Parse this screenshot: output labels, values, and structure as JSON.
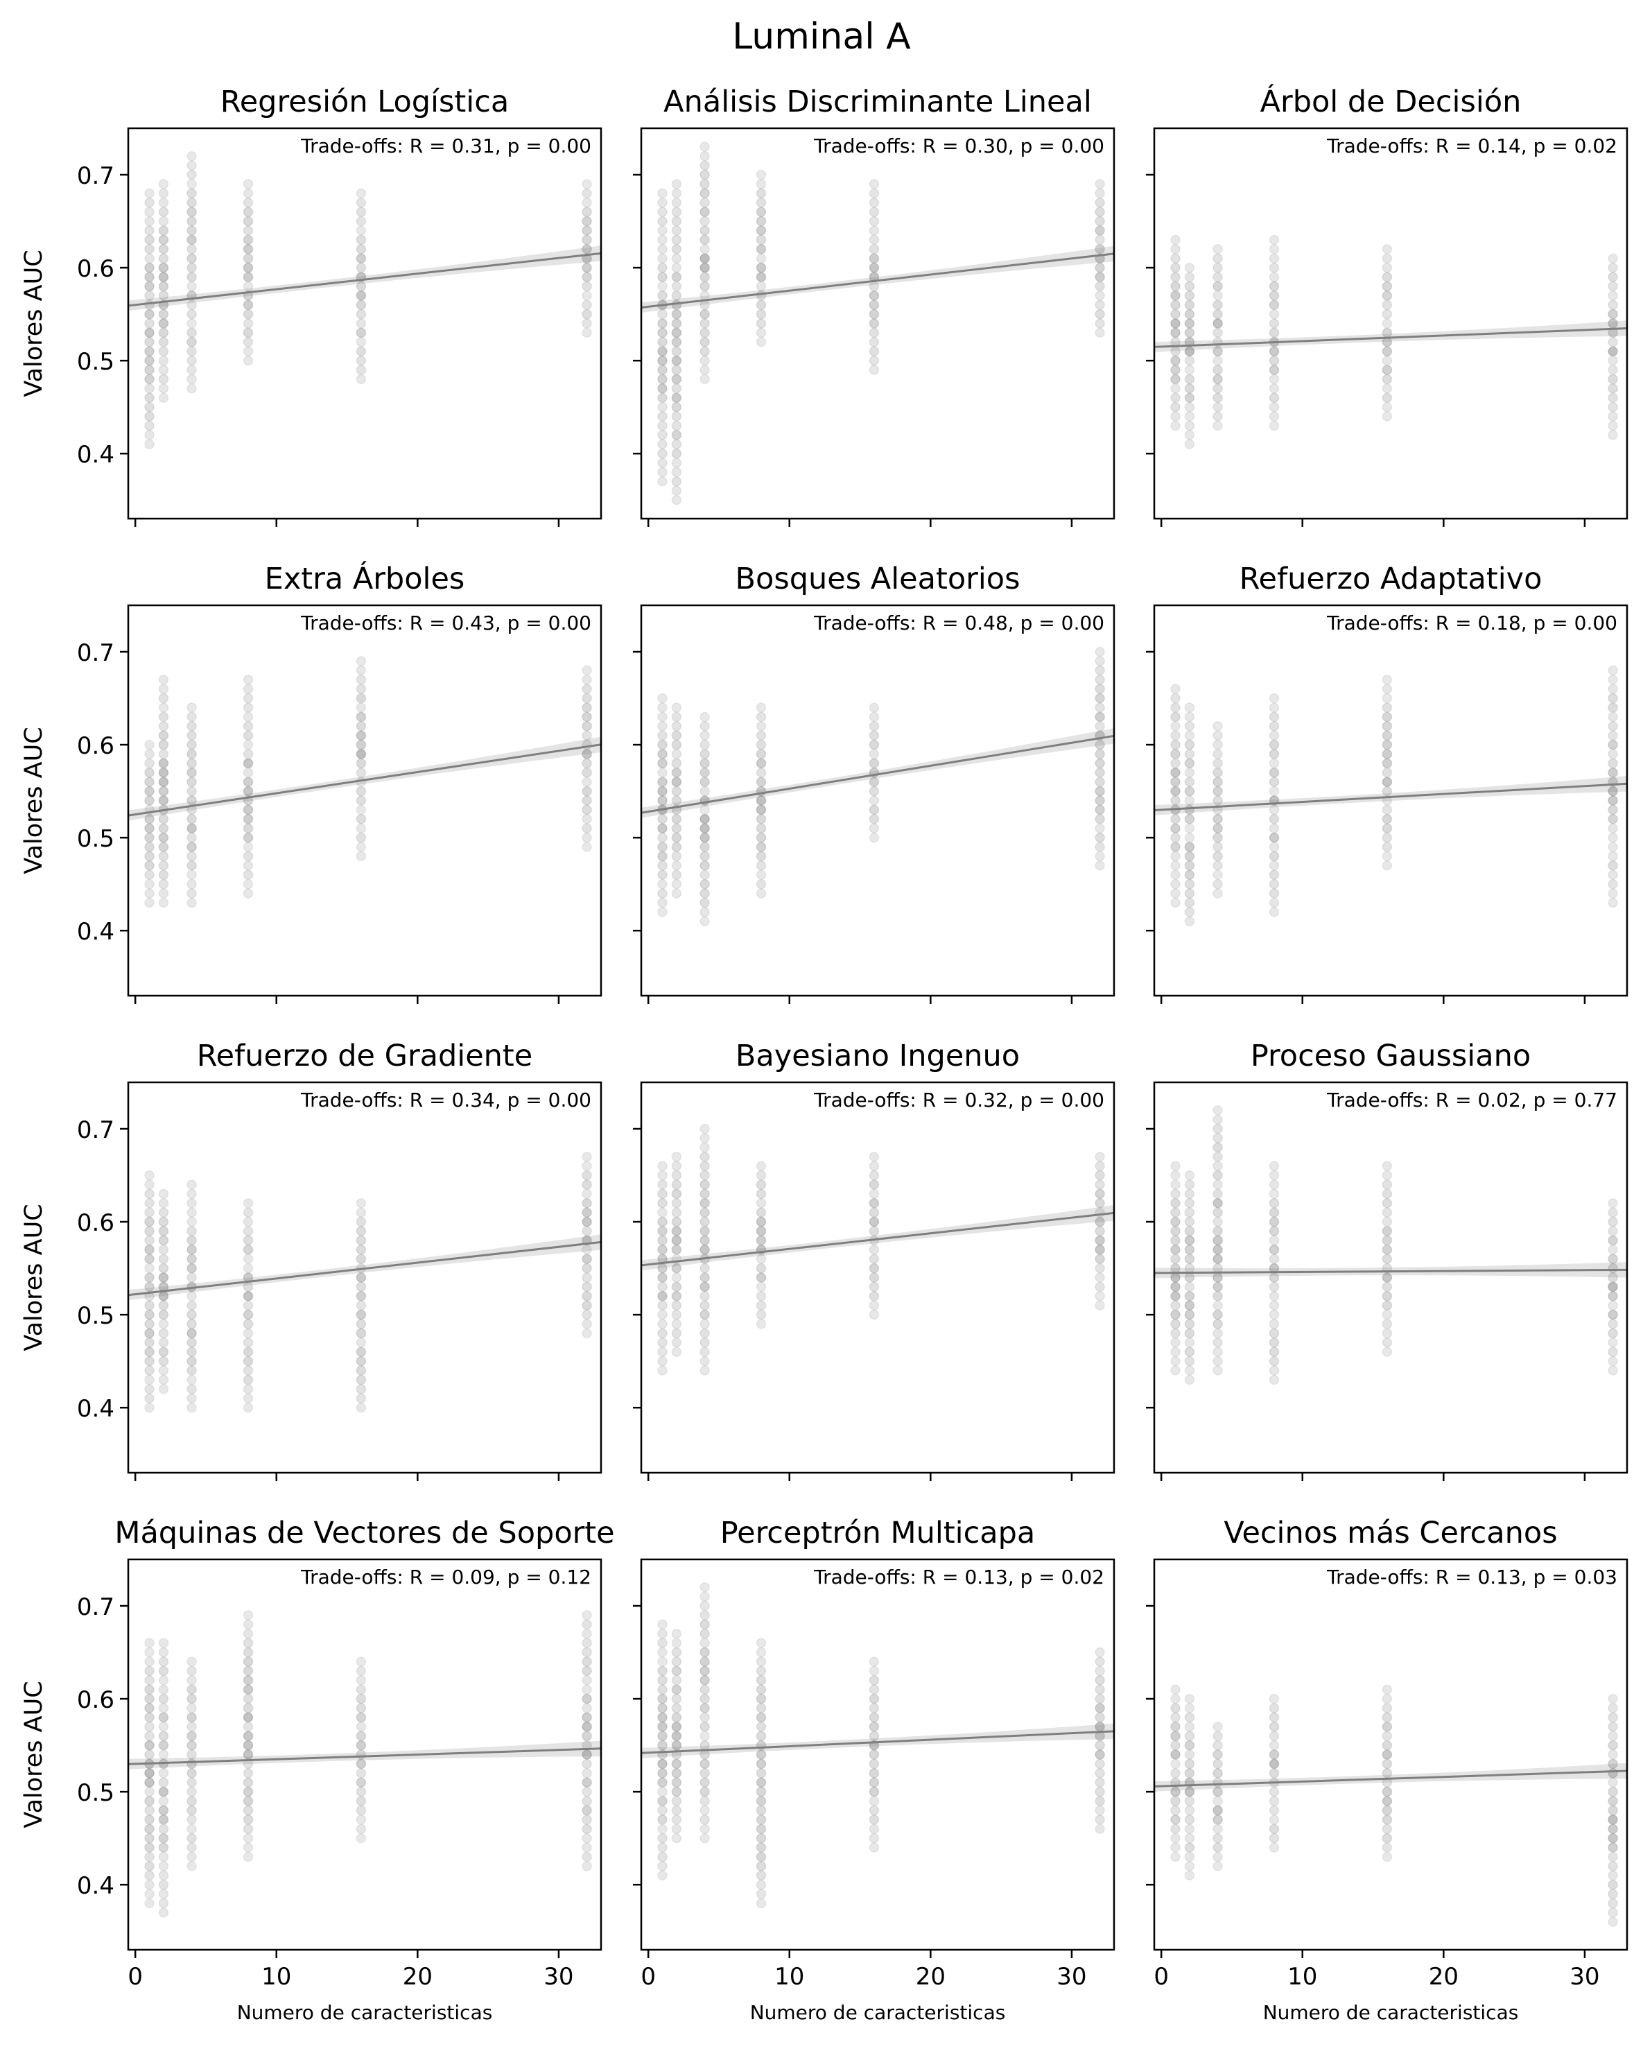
{
  "figure_title": "Luminal A",
  "x_tick_labels": [
    "0",
    "10",
    "20",
    "30"
  ],
  "y_tick_labels": [
    "0.4",
    "0.5",
    "0.6",
    "0.7"
  ],
  "colors": {
    "points": "#808080",
    "regression_line": "#7f7f7f",
    "confidence_band": "#d9d9d9",
    "axes": "#000000"
  },
  "chart_data": [
    {
      "type": "scatter",
      "title": "Regresión Logística",
      "annotation": "Trade-offs: R = 0.31, p = 0.00",
      "ylabel": "Valores AUC",
      "xlabel": "",
      "xlim": [
        -0.5,
        33
      ],
      "ylim": [
        0.33,
        0.75
      ],
      "x_values": [
        1,
        2,
        4,
        8,
        16,
        32
      ],
      "y_min": [
        0.41,
        0.46,
        0.47,
        0.5,
        0.48,
        0.53
      ],
      "y_max": [
        0.68,
        0.69,
        0.72,
        0.69,
        0.68,
        0.69
      ],
      "regression": {
        "intercept": 0.56,
        "slope": 0.00168
      }
    },
    {
      "type": "scatter",
      "title": "Análisis Discriminante Lineal",
      "annotation": "Trade-offs: R = 0.30, p = 0.00",
      "ylabel": "",
      "xlabel": "",
      "xlim": [
        -0.5,
        33
      ],
      "ylim": [
        0.33,
        0.75
      ],
      "x_values": [
        1,
        2,
        4,
        8,
        16,
        32
      ],
      "y_min": [
        0.37,
        0.35,
        0.48,
        0.52,
        0.49,
        0.53
      ],
      "y_max": [
        0.68,
        0.69,
        0.73,
        0.7,
        0.69,
        0.69
      ],
      "regression": {
        "intercept": 0.558,
        "slope": 0.00173
      }
    },
    {
      "type": "scatter",
      "title": "Árbol de Decisión",
      "annotation": "Trade-offs: R = 0.14, p = 0.02",
      "ylabel": "",
      "xlabel": "",
      "xlim": [
        -0.5,
        33
      ],
      "ylim": [
        0.33,
        0.75
      ],
      "x_values": [
        1,
        2,
        4,
        8,
        16,
        32
      ],
      "y_min": [
        0.43,
        0.41,
        0.43,
        0.43,
        0.44,
        0.42
      ],
      "y_max": [
        0.63,
        0.6,
        0.62,
        0.63,
        0.62,
        0.61
      ],
      "regression": {
        "intercept": 0.515,
        "slope": 0.0006
      }
    },
    {
      "type": "scatter",
      "title": "Extra Árboles",
      "annotation": "Trade-offs: R = 0.43, p = 0.00",
      "ylabel": "Valores AUC",
      "xlabel": "",
      "xlim": [
        -0.5,
        33
      ],
      "ylim": [
        0.33,
        0.75
      ],
      "x_values": [
        1,
        2,
        4,
        8,
        16,
        32
      ],
      "y_min": [
        0.43,
        0.43,
        0.43,
        0.44,
        0.48,
        0.49
      ],
      "y_max": [
        0.6,
        0.67,
        0.64,
        0.67,
        0.69,
        0.68
      ],
      "regression": {
        "intercept": 0.525,
        "slope": 0.00228
      }
    },
    {
      "type": "scatter",
      "title": "Bosques Aleatorios",
      "annotation": "Trade-offs: R = 0.48, p = 0.00",
      "ylabel": "",
      "xlabel": "",
      "xlim": [
        -0.5,
        33
      ],
      "ylim": [
        0.33,
        0.75
      ],
      "x_values": [
        1,
        2,
        4,
        8,
        16,
        32
      ],
      "y_min": [
        0.42,
        0.44,
        0.41,
        0.44,
        0.5,
        0.47
      ],
      "y_max": [
        0.65,
        0.64,
        0.63,
        0.64,
        0.64,
        0.7
      ],
      "regression": {
        "intercept": 0.528,
        "slope": 0.00247
      }
    },
    {
      "type": "scatter",
      "title": "Refuerzo Adaptativo",
      "annotation": "Trade-offs: R = 0.18, p = 0.00",
      "ylabel": "",
      "xlabel": "",
      "xlim": [
        -0.5,
        33
      ],
      "ylim": [
        0.33,
        0.75
      ],
      "x_values": [
        1,
        2,
        4,
        8,
        16,
        32
      ],
      "y_min": [
        0.43,
        0.41,
        0.44,
        0.42,
        0.47,
        0.43
      ],
      "y_max": [
        0.66,
        0.64,
        0.62,
        0.65,
        0.67,
        0.68
      ],
      "regression": {
        "intercept": 0.53,
        "slope": 0.00085
      }
    },
    {
      "type": "scatter",
      "title": "Refuerzo de Gradiente",
      "annotation": "Trade-offs: R = 0.34, p = 0.00",
      "ylabel": "Valores AUC",
      "xlabel": "",
      "xlim": [
        -0.5,
        33
      ],
      "ylim": [
        0.33,
        0.75
      ],
      "x_values": [
        1,
        2,
        4,
        8,
        16,
        32
      ],
      "y_min": [
        0.4,
        0.42,
        0.4,
        0.4,
        0.4,
        0.48
      ],
      "y_max": [
        0.65,
        0.63,
        0.64,
        0.62,
        0.62,
        0.67
      ],
      "regression": {
        "intercept": 0.522,
        "slope": 0.0017
      }
    },
    {
      "type": "scatter",
      "title": "Bayesiano Ingenuo",
      "annotation": "Trade-offs: R = 0.32, p = 0.00",
      "ylabel": "",
      "xlabel": "",
      "xlim": [
        -0.5,
        33
      ],
      "ylim": [
        0.33,
        0.75
      ],
      "x_values": [
        1,
        2,
        4,
        8,
        16,
        32
      ],
      "y_min": [
        0.44,
        0.46,
        0.44,
        0.49,
        0.5,
        0.51
      ],
      "y_max": [
        0.66,
        0.67,
        0.7,
        0.66,
        0.67,
        0.67
      ],
      "regression": {
        "intercept": 0.554,
        "slope": 0.00168
      }
    },
    {
      "type": "scatter",
      "title": "Proceso Gaussiano",
      "annotation": "Trade-offs: R = 0.02, p = 0.77",
      "ylabel": "",
      "xlabel": "",
      "xlim": [
        -0.5,
        33
      ],
      "ylim": [
        0.33,
        0.75
      ],
      "x_values": [
        1,
        2,
        4,
        8,
        16,
        32
      ],
      "y_min": [
        0.44,
        0.43,
        0.44,
        0.43,
        0.46,
        0.44
      ],
      "y_max": [
        0.66,
        0.65,
        0.72,
        0.66,
        0.66,
        0.62
      ],
      "regression": {
        "intercept": 0.545,
        "slope": 0.0001
      }
    },
    {
      "type": "scatter",
      "title": "Máquinas de Vectores de Soporte",
      "annotation": "Trade-offs: R = 0.09, p = 0.12",
      "ylabel": "Valores AUC",
      "xlabel": "Numero de caracteristicas",
      "xlim": [
        -0.5,
        33
      ],
      "ylim": [
        0.33,
        0.75
      ],
      "x_values": [
        1,
        2,
        4,
        8,
        16,
        32
      ],
      "y_min": [
        0.38,
        0.37,
        0.42,
        0.43,
        0.45,
        0.42
      ],
      "y_max": [
        0.66,
        0.66,
        0.64,
        0.69,
        0.64,
        0.69
      ],
      "regression": {
        "intercept": 0.53,
        "slope": 0.0005
      }
    },
    {
      "type": "scatter",
      "title": "Perceptrón Multicapa",
      "annotation": "Trade-offs: R = 0.13, p = 0.02",
      "ylabel": "",
      "xlabel": "Numero de caracteristicas",
      "xlim": [
        -0.5,
        33
      ],
      "ylim": [
        0.33,
        0.75
      ],
      "x_values": [
        1,
        2,
        4,
        8,
        16,
        32
      ],
      "y_min": [
        0.41,
        0.45,
        0.45,
        0.38,
        0.44,
        0.46
      ],
      "y_max": [
        0.68,
        0.67,
        0.72,
        0.66,
        0.64,
        0.65
      ],
      "regression": {
        "intercept": 0.542,
        "slope": 0.0007
      }
    },
    {
      "type": "scatter",
      "title": "Vecinos más Cercanos",
      "annotation": "Trade-offs: R = 0.13, p = 0.03",
      "ylabel": "",
      "xlabel": "Numero de caracteristicas",
      "xlim": [
        -0.5,
        33
      ],
      "ylim": [
        0.33,
        0.75
      ],
      "x_values": [
        1,
        2,
        4,
        8,
        16,
        32
      ],
      "y_min": [
        0.43,
        0.41,
        0.42,
        0.44,
        0.43,
        0.36
      ],
      "y_max": [
        0.61,
        0.6,
        0.57,
        0.6,
        0.61,
        0.6
      ],
      "regression": {
        "intercept": 0.506,
        "slope": 0.0005
      }
    }
  ]
}
